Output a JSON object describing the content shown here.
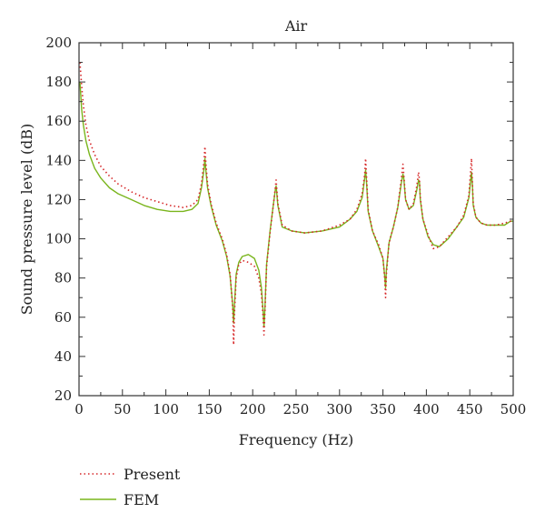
{
  "chart_data": {
    "type": "line",
    "title": "Air",
    "xlabel": "Frequency (Hz)",
    "ylabel": "Sound pressure level (dB)",
    "xlim": [
      0,
      500
    ],
    "ylim": [
      20,
      200
    ],
    "xticks": [
      0,
      50,
      100,
      150,
      200,
      250,
      300,
      350,
      400,
      450,
      500
    ],
    "yticks": [
      20,
      40,
      60,
      80,
      100,
      120,
      140,
      160,
      180,
      200
    ],
    "grid": false,
    "legend_position": "bottom-left",
    "series": [
      {
        "name": "Present",
        "style": "dotted",
        "color": "#d62728",
        "x": [
          1,
          3,
          5,
          8,
          12,
          18,
          25,
          35,
          45,
          60,
          75,
          90,
          105,
          120,
          130,
          137,
          141,
          144,
          145,
          146,
          148,
          152,
          158,
          165,
          170,
          174,
          177,
          178,
          179,
          181,
          184,
          188,
          195,
          202,
          207,
          210,
          212,
          213,
          214,
          216,
          220,
          224,
          226,
          227,
          229,
          234,
          245,
          260,
          280,
          300,
          312,
          320,
          326,
          329,
          330,
          331,
          333,
          338,
          345,
          350,
          352,
          353,
          354,
          357,
          362,
          367,
          371,
          373,
          374,
          376,
          380,
          385,
          389,
          391,
          392,
          393,
          396,
          402,
          408,
          415,
          425,
          435,
          443,
          449,
          452,
          453,
          454,
          457,
          463,
          470,
          480,
          490,
          497,
          500
        ],
        "y": [
          190,
          178,
          168,
          158,
          150,
          143,
          137,
          132,
          128,
          124,
          121,
          119,
          117,
          116,
          117,
          120,
          128,
          140,
          147,
          139,
          128,
          118,
          108,
          100,
          92,
          82,
          65,
          46,
          62,
          80,
          87,
          89,
          88,
          86,
          80,
          72,
          60,
          51,
          62,
          86,
          103,
          118,
          126,
          130,
          118,
          107,
          104,
          103,
          104,
          107,
          110,
          115,
          123,
          133,
          141,
          133,
          115,
          104,
          97,
          90,
          80,
          70,
          82,
          98,
          106,
          116,
          130,
          138,
          133,
          120,
          115,
          118,
          127,
          134,
          130,
          121,
          110,
          102,
          95,
          96,
          101,
          106,
          112,
          122,
          141,
          128,
          118,
          111,
          108,
          107,
          107,
          108,
          109,
          109
        ]
      },
      {
        "name": "FEM",
        "style": "solid",
        "color": "#7ab51d",
        "x": [
          1,
          3,
          5,
          8,
          12,
          18,
          25,
          35,
          45,
          60,
          75,
          90,
          105,
          120,
          130,
          137,
          141,
          144,
          145,
          146,
          148,
          152,
          158,
          165,
          170,
          174,
          177,
          178,
          179,
          181,
          184,
          188,
          195,
          202,
          207,
          210,
          212,
          213,
          214,
          216,
          220,
          224,
          226,
          227,
          229,
          234,
          245,
          260,
          280,
          300,
          312,
          320,
          326,
          329,
          330,
          331,
          333,
          338,
          345,
          350,
          352,
          353,
          354,
          357,
          362,
          367,
          371,
          373,
          374,
          376,
          380,
          385,
          389,
          391,
          392,
          393,
          396,
          402,
          408,
          415,
          425,
          435,
          443,
          449,
          452,
          453,
          454,
          457,
          463,
          470,
          480,
          490,
          497,
          500
        ],
        "y": [
          180,
          166,
          158,
          150,
          143,
          136,
          131,
          126,
          123,
          120,
          117,
          115,
          114,
          114,
          115,
          118,
          126,
          136,
          141,
          135,
          126,
          117,
          107,
          99,
          91,
          81,
          66,
          57,
          66,
          82,
          88,
          91,
          92,
          90,
          84,
          75,
          63,
          55,
          64,
          87,
          104,
          118,
          125,
          127,
          117,
          106,
          104,
          103,
          104,
          106,
          110,
          114,
          121,
          131,
          135,
          130,
          114,
          104,
          96,
          90,
          81,
          75,
          84,
          98,
          106,
          116,
          128,
          133,
          131,
          120,
          115,
          117,
          125,
          130,
          129,
          120,
          110,
          101,
          97,
          96,
          100,
          106,
          111,
          121,
          134,
          127,
          117,
          111,
          108,
          107,
          107,
          107,
          109,
          109
        ]
      }
    ]
  }
}
